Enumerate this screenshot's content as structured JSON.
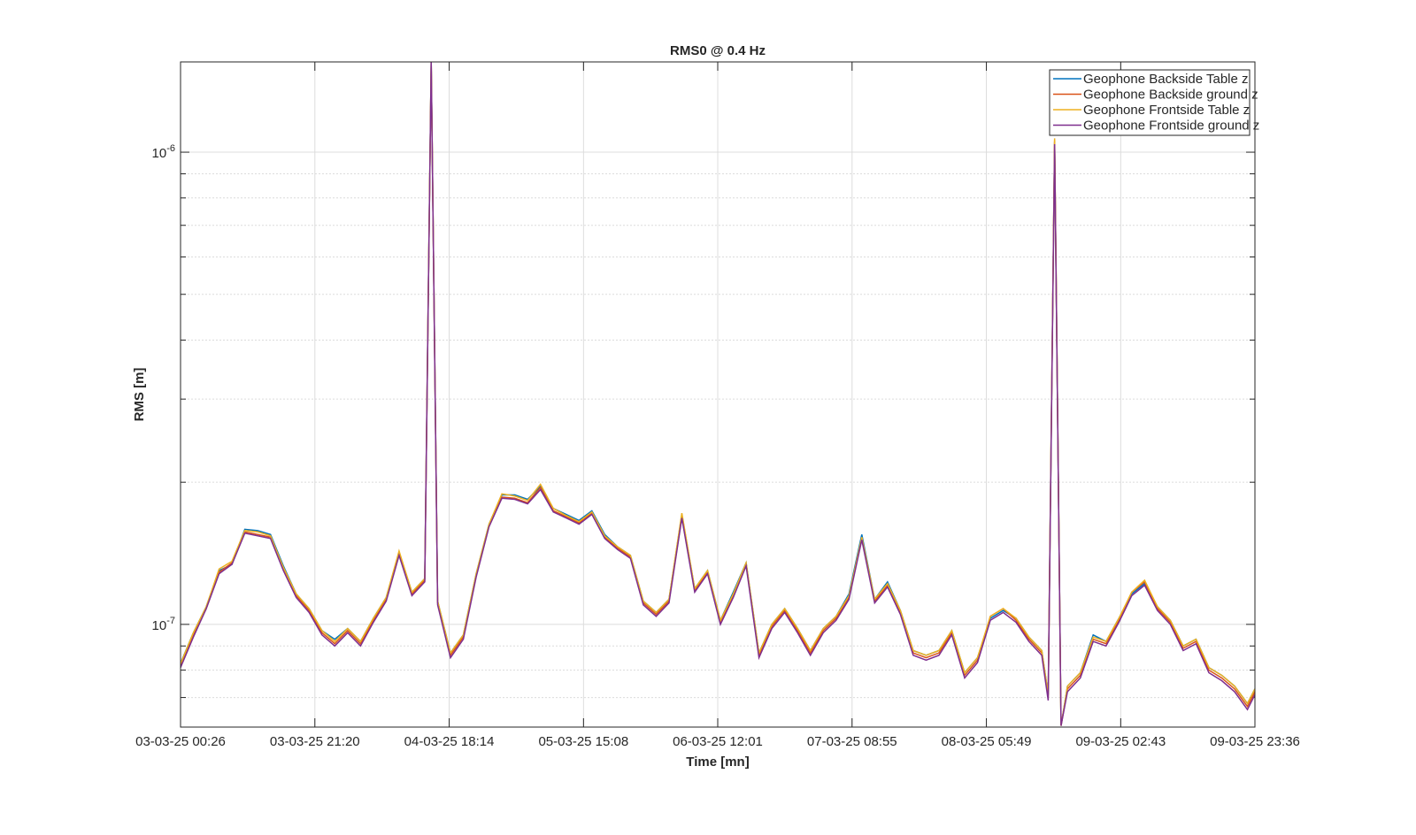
{
  "chart_data": {
    "type": "line",
    "title": "RMS0 @ 0.4 Hz",
    "xlabel": "Time [mn]",
    "ylabel": "RMS [m]",
    "x": [
      "03-03-25 00:26",
      "03-03-25 02:26",
      "03-03-25 04:26",
      "03-03-25 06:26",
      "03-03-25 08:26",
      "03-03-25 10:26",
      "03-03-25 12:26",
      "03-03-25 14:26",
      "03-03-25 16:26",
      "03-03-25 18:26",
      "03-03-25 20:26",
      "03-03-25 22:26",
      "04-03-25 00:26",
      "04-03-25 02:26",
      "04-03-25 04:26",
      "04-03-25 06:26",
      "04-03-25 08:26",
      "04-03-25 10:26",
      "04-03-25 12:26",
      "04-03-25 14:26",
      "04-03-25 15:26",
      "04-03-25 16:26",
      "04-03-25 18:26",
      "04-03-25 20:26",
      "04-03-25 22:26",
      "05-03-25 00:26",
      "05-03-25 02:26",
      "05-03-25 04:26",
      "05-03-25 06:26",
      "05-03-25 08:26",
      "05-03-25 10:26",
      "05-03-25 12:26",
      "05-03-25 14:26",
      "05-03-25 16:26",
      "05-03-25 18:26",
      "05-03-25 20:26",
      "05-03-25 22:26",
      "06-03-25 00:26",
      "06-03-25 02:26",
      "06-03-25 04:26",
      "06-03-25 06:26",
      "06-03-25 08:26",
      "06-03-25 10:26",
      "06-03-25 12:26",
      "06-03-25 14:26",
      "06-03-25 16:26",
      "06-03-25 18:26",
      "06-03-25 20:26",
      "06-03-25 22:26",
      "07-03-25 00:26",
      "07-03-25 02:26",
      "07-03-25 04:26",
      "07-03-25 06:26",
      "07-03-25 08:26",
      "07-03-25 10:26",
      "07-03-25 12:26",
      "07-03-25 14:26",
      "07-03-25 16:26",
      "07-03-25 18:26",
      "07-03-25 20:26",
      "07-03-25 22:26",
      "08-03-25 00:26",
      "08-03-25 02:26",
      "08-03-25 04:26",
      "08-03-25 06:26",
      "08-03-25 08:26",
      "08-03-25 10:26",
      "08-03-25 12:26",
      "08-03-25 14:26",
      "08-03-25 15:26",
      "08-03-25 16:26",
      "08-03-25 17:26",
      "08-03-25 18:26",
      "08-03-25 20:26",
      "08-03-25 22:26",
      "09-03-25 00:26",
      "09-03-25 02:26",
      "09-03-25 04:26",
      "09-03-25 06:26",
      "09-03-25 08:26",
      "09-03-25 10:26",
      "09-03-25 12:26",
      "09-03-25 14:26",
      "09-03-25 16:26",
      "09-03-25 18:26",
      "09-03-25 20:26",
      "09-03-25 22:26",
      "09-03-25 23:36"
    ],
    "series": [
      {
        "name": "Geophone Backside Table z",
        "color": "#0072bd",
        "values": [
          8.27e-08,
          9.6e-08,
          1.09e-07,
          1.3e-07,
          1.34e-07,
          1.59e-07,
          1.58e-07,
          1.55e-07,
          1.33e-07,
          1.16e-07,
          1.08e-07,
          9.7e-08,
          9.3e-08,
          9.8e-08,
          9.2e-08,
          1.03e-07,
          1.14e-07,
          1.42e-07,
          1.17e-07,
          1.25e-07,
          1.55e-06,
          1.12e-07,
          8.7e-08,
          9.5e-08,
          1.28e-07,
          1.63e-07,
          1.88e-07,
          1.88e-07,
          1.84e-07,
          1.96e-07,
          1.76e-07,
          1.71e-07,
          1.66e-07,
          1.74e-07,
          1.55e-07,
          1.46e-07,
          1.4e-07,
          1.12e-07,
          1.06e-07,
          1.13e-07,
          1.71e-07,
          1.19e-07,
          1.3e-07,
          1.02e-07,
          1.17e-07,
          1.35e-07,
          8.7e-08,
          1e-07,
          1.08e-07,
          9.8e-08,
          8.8e-08,
          9.8e-08,
          1.04e-07,
          1.16e-07,
          1.55e-07,
          1.13e-07,
          1.23e-07,
          1.07e-07,
          8.8e-08,
          8.6e-08,
          8.8e-08,
          9.7e-08,
          7.9e-08,
          8.5e-08,
          1.03e-07,
          1.07e-07,
          1.03e-07,
          9.4e-08,
          8.8e-08,
          7.1e-08,
          1.05e-06,
          6.1e-08,
          7.4e-08,
          7.9e-08,
          9.5e-08,
          9.2e-08,
          1.03e-07,
          1.16e-07,
          1.22e-07,
          1.09e-07,
          1.02e-07,
          9e-08,
          9.3e-08,
          8.1e-08,
          7.8e-08,
          7.4e-08,
          6.8e-08,
          7.3e-08
        ]
      },
      {
        "name": "Geophone Backside ground z",
        "color": "#d95319",
        "values": [
          8.2e-08,
          9.5e-08,
          1.08e-07,
          1.29e-07,
          1.35e-07,
          1.57e-07,
          1.55e-07,
          1.53e-07,
          1.31e-07,
          1.15e-07,
          1.07e-07,
          9.6e-08,
          9.1e-08,
          9.7e-08,
          9.1e-08,
          1.02e-07,
          1.13e-07,
          1.41e-07,
          1.16e-07,
          1.24e-07,
          1.55e-06,
          1.11e-07,
          8.6e-08,
          9.4e-08,
          1.27e-07,
          1.62e-07,
          1.86e-07,
          1.85e-07,
          1.81e-07,
          1.95e-07,
          1.74e-07,
          1.69e-07,
          1.64e-07,
          1.72e-07,
          1.53e-07,
          1.45e-07,
          1.39e-07,
          1.11e-07,
          1.05e-07,
          1.12e-07,
          1.69e-07,
          1.18e-07,
          1.29e-07,
          1.01e-07,
          1.15e-07,
          1.34e-07,
          8.6e-08,
          9.9e-08,
          1.07e-07,
          9.7e-08,
          8.7e-08,
          9.7e-08,
          1.03e-07,
          1.14e-07,
          1.52e-07,
          1.12e-07,
          1.21e-07,
          1.06e-07,
          8.7e-08,
          8.5e-08,
          8.7e-08,
          9.6e-08,
          7.8e-08,
          8.4e-08,
          1.04e-07,
          1.08e-07,
          1.02e-07,
          9.3e-08,
          8.7e-08,
          7e-08,
          1.06e-06,
          6.1e-08,
          7.3e-08,
          7.8e-08,
          9.3e-08,
          9.1e-08,
          1.02e-07,
          1.17e-07,
          1.23e-07,
          1.08e-07,
          1.01e-07,
          8.9e-08,
          9.2e-08,
          8e-08,
          7.7e-08,
          7.3e-08,
          6.7e-08,
          7.2e-08
        ]
      },
      {
        "name": "Geophone Frontside Table z",
        "color": "#edb120",
        "values": [
          8.25e-08,
          9.6e-08,
          1.09e-07,
          1.31e-07,
          1.36e-07,
          1.58e-07,
          1.57e-07,
          1.54e-07,
          1.32e-07,
          1.16e-07,
          1.08e-07,
          9.7e-08,
          9.2e-08,
          9.8e-08,
          9.2e-08,
          1.03e-07,
          1.14e-07,
          1.43e-07,
          1.17e-07,
          1.25e-07,
          1.55e-06,
          1.12e-07,
          8.7e-08,
          9.5e-08,
          1.28e-07,
          1.63e-07,
          1.89e-07,
          1.87e-07,
          1.83e-07,
          1.98e-07,
          1.76e-07,
          1.7e-07,
          1.65e-07,
          1.73e-07,
          1.54e-07,
          1.46e-07,
          1.4e-07,
          1.12e-07,
          1.06e-07,
          1.13e-07,
          1.72e-07,
          1.19e-07,
          1.3e-07,
          1.02e-07,
          1.16e-07,
          1.35e-07,
          8.7e-08,
          1e-07,
          1.08e-07,
          9.8e-08,
          8.8e-08,
          9.8e-08,
          1.04e-07,
          1.15e-07,
          1.53e-07,
          1.13e-07,
          1.22e-07,
          1.07e-07,
          8.8e-08,
          8.6e-08,
          8.8e-08,
          9.7e-08,
          7.9e-08,
          8.5e-08,
          1.04e-07,
          1.08e-07,
          1.03e-07,
          9.4e-08,
          8.8e-08,
          7.1e-08,
          1.07e-06,
          6.1e-08,
          7.4e-08,
          7.9e-08,
          9.4e-08,
          9.2e-08,
          1.03e-07,
          1.17e-07,
          1.24e-07,
          1.09e-07,
          1.02e-07,
          9e-08,
          9.3e-08,
          8.1e-08,
          7.8e-08,
          7.4e-08,
          6.8e-08,
          7.3e-08
        ]
      },
      {
        "name": "Geophone Frontside ground z",
        "color": "#7e2f8e",
        "values": [
          8.1e-08,
          9.4e-08,
          1.08e-07,
          1.28e-07,
          1.34e-07,
          1.56e-07,
          1.54e-07,
          1.52e-07,
          1.3e-07,
          1.14e-07,
          1.06e-07,
          9.5e-08,
          9e-08,
          9.6e-08,
          9e-08,
          1.01e-07,
          1.12e-07,
          1.4e-07,
          1.15e-07,
          1.23e-07,
          1.55e-06,
          1.1e-07,
          8.5e-08,
          9.3e-08,
          1.26e-07,
          1.61e-07,
          1.85e-07,
          1.84e-07,
          1.8e-07,
          1.93e-07,
          1.73e-07,
          1.68e-07,
          1.63e-07,
          1.71e-07,
          1.52e-07,
          1.44e-07,
          1.38e-07,
          1.1e-07,
          1.04e-07,
          1.11e-07,
          1.68e-07,
          1.17e-07,
          1.28e-07,
          1e-07,
          1.14e-07,
          1.33e-07,
          8.5e-08,
          9.8e-08,
          1.06e-07,
          9.6e-08,
          8.6e-08,
          9.6e-08,
          1.02e-07,
          1.13e-07,
          1.51e-07,
          1.11e-07,
          1.2e-07,
          1.05e-07,
          8.6e-08,
          8.4e-08,
          8.6e-08,
          9.5e-08,
          7.7e-08,
          8.3e-08,
          1.02e-07,
          1.06e-07,
          1.01e-07,
          9.2e-08,
          8.6e-08,
          6.9e-08,
          1.04e-06,
          6.1e-08,
          7.2e-08,
          7.7e-08,
          9.2e-08,
          9e-08,
          1.01e-07,
          1.15e-07,
          1.21e-07,
          1.07e-07,
          1e-07,
          8.8e-08,
          9.1e-08,
          7.9e-08,
          7.6e-08,
          7.2e-08,
          6.6e-08,
          7.1e-08
        ]
      }
    ],
    "xlim": [
      "03-03-25 00:26",
      "09-03-25 23:36"
    ],
    "xticks": [
      "03-03-25 00:26",
      "03-03-25 21:20",
      "04-03-25 18:14",
      "05-03-25 15:08",
      "06-03-25 12:01",
      "07-03-25 08:55",
      "08-03-25 05:49",
      "09-03-25 02:43",
      "09-03-25 23:36"
    ],
    "ylim": [
      6.06e-08,
      1.553e-06
    ],
    "yscale": "log",
    "yticks": [
      {
        "value": 1e-07,
        "label": "10^{-7}"
      },
      {
        "value": 1e-06,
        "label": "10^{-6}"
      }
    ],
    "yminorticks": [
      7e-08,
      8e-08,
      9e-08,
      2e-07,
      3e-07,
      4e-07,
      5e-07,
      6e-07,
      7e-07,
      8e-07,
      9e-07
    ],
    "grid": true,
    "legend": "upper right"
  }
}
